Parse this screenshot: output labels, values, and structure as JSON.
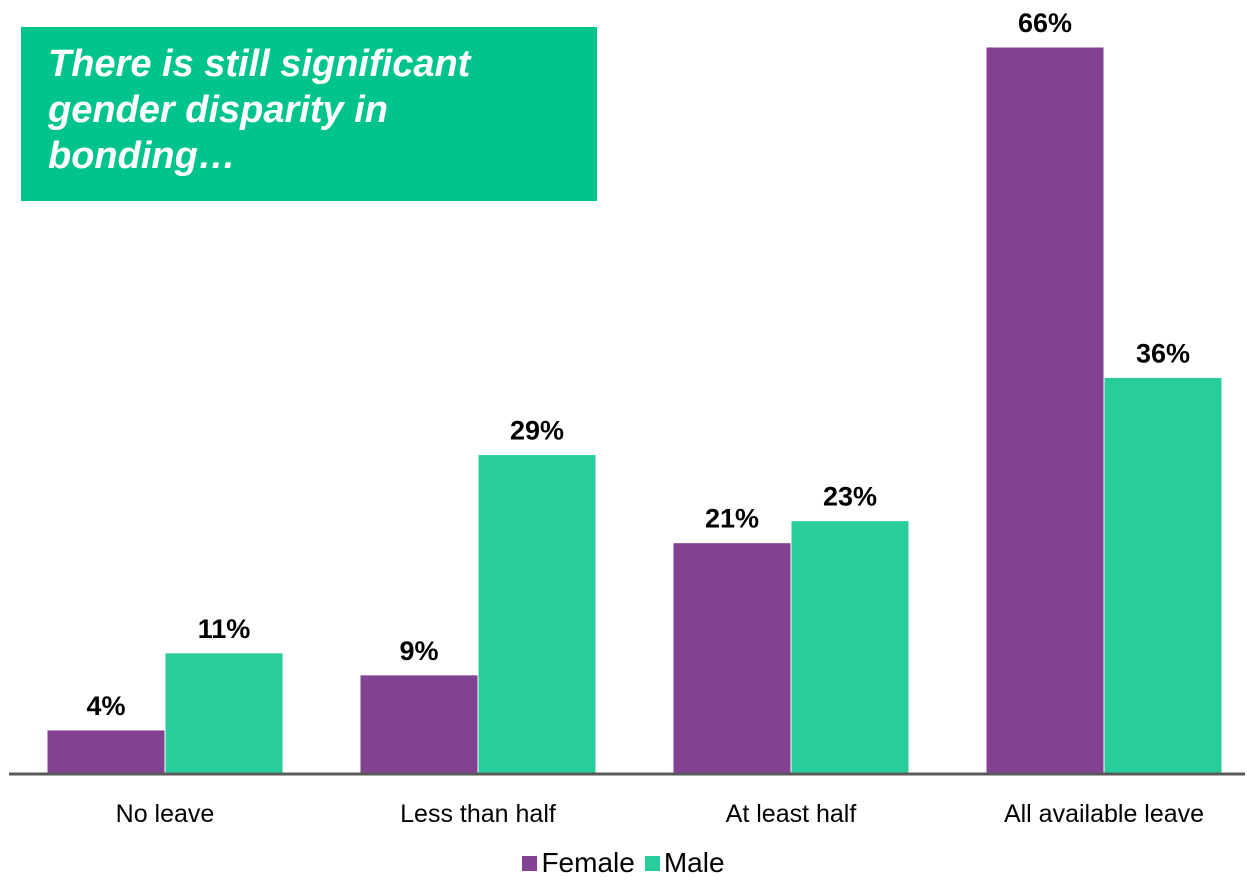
{
  "callout": {
    "text": "There is still significant gender disparity in bonding…",
    "background": "#00c48c"
  },
  "chart_data": {
    "type": "bar",
    "title": "",
    "xlabel": "",
    "ylabel": "",
    "ylim": [
      0,
      66
    ],
    "grid": false,
    "legend_position": "bottom",
    "categories": [
      "No leave",
      "Less than half",
      "At least half",
      "All available leave"
    ],
    "series": [
      {
        "name": "Female",
        "color": "#834192",
        "values": [
          4,
          9,
          21,
          66
        ],
        "labels": [
          "4%",
          "9%",
          "21%",
          "66%"
        ]
      },
      {
        "name": "Male",
        "color": "#29cd9b",
        "values": [
          11,
          29,
          23,
          36
        ],
        "labels": [
          "11%",
          "29%",
          "23%",
          "36%"
        ]
      }
    ]
  }
}
